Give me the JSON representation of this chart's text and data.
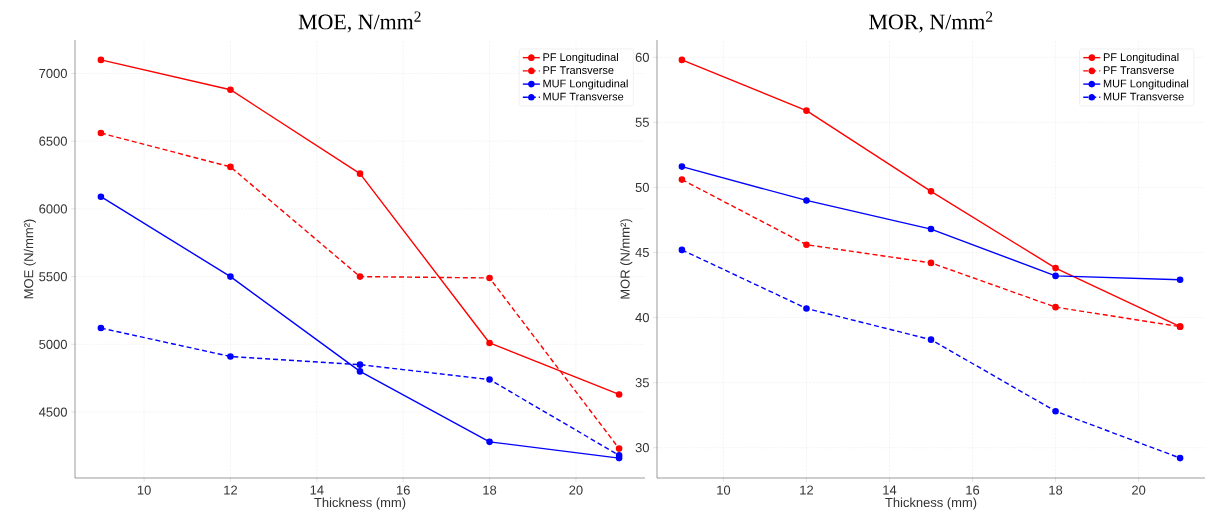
{
  "chart_data": [
    {
      "type": "line",
      "title": "MOE, N/mm$^{2}$",
      "xlabel": "Thickness (mm)",
      "ylabel": "MOE (N/mm²)",
      "x": [
        9,
        12,
        15,
        18,
        21
      ],
      "series": [
        {
          "name": "PF Longitudinal",
          "color": "#ff0000",
          "line_style": "solid",
          "values": [
            7100,
            6880,
            6260,
            5010,
            4630
          ]
        },
        {
          "name": "PF Transverse",
          "color": "#ff0000",
          "line_style": "dashed",
          "values": [
            6560,
            6310,
            5500,
            5490,
            4230
          ]
        },
        {
          "name": "MUF Longitudinal",
          "color": "#0000ff",
          "line_style": "solid",
          "values": [
            6090,
            5500,
            4800,
            4280,
            4160
          ]
        },
        {
          "name": "MUF Transverse",
          "color": "#0000ff",
          "line_style": "dashed",
          "values": [
            5120,
            4910,
            4850,
            4740,
            4180
          ]
        }
      ],
      "xlim": [
        8.4,
        21.6
      ],
      "ylim": [
        4013,
        7247
      ],
      "xticks": [
        10,
        12,
        14,
        16,
        18,
        20
      ],
      "yticks": [
        4500,
        5000,
        5500,
        6000,
        6500,
        7000
      ],
      "grid": true,
      "legend": "top right",
      "marker": "circle"
    },
    {
      "type": "line",
      "title": "MOR, N/mm$^{2}$",
      "xlabel": "Thickness (mm)",
      "ylabel": "MOR (N/mm²)",
      "x": [
        9,
        12,
        15,
        18,
        21
      ],
      "series": [
        {
          "name": "PF Longitudinal",
          "color": "#ff0000",
          "line_style": "solid",
          "values": [
            59.8,
            55.9,
            49.7,
            43.8,
            39.3
          ]
        },
        {
          "name": "PF Transverse",
          "color": "#ff0000",
          "line_style": "dashed",
          "values": [
            50.6,
            45.6,
            44.2,
            40.8,
            39.3
          ]
        },
        {
          "name": "MUF Longitudinal",
          "color": "#0000ff",
          "line_style": "solid",
          "values": [
            51.6,
            49.0,
            46.8,
            43.2,
            42.9
          ]
        },
        {
          "name": "MUF Transverse",
          "color": "#0000ff",
          "line_style": "dashed",
          "values": [
            45.2,
            40.7,
            38.3,
            32.8,
            29.2
          ]
        }
      ],
      "xlim": [
        8.4,
        21.6
      ],
      "ylim": [
        27.67,
        61.33
      ],
      "xticks": [
        10,
        12,
        14,
        16,
        18,
        20
      ],
      "yticks": [
        30,
        35,
        40,
        45,
        50,
        55,
        60
      ],
      "grid": true,
      "legend": "top right",
      "marker": "circle"
    }
  ]
}
